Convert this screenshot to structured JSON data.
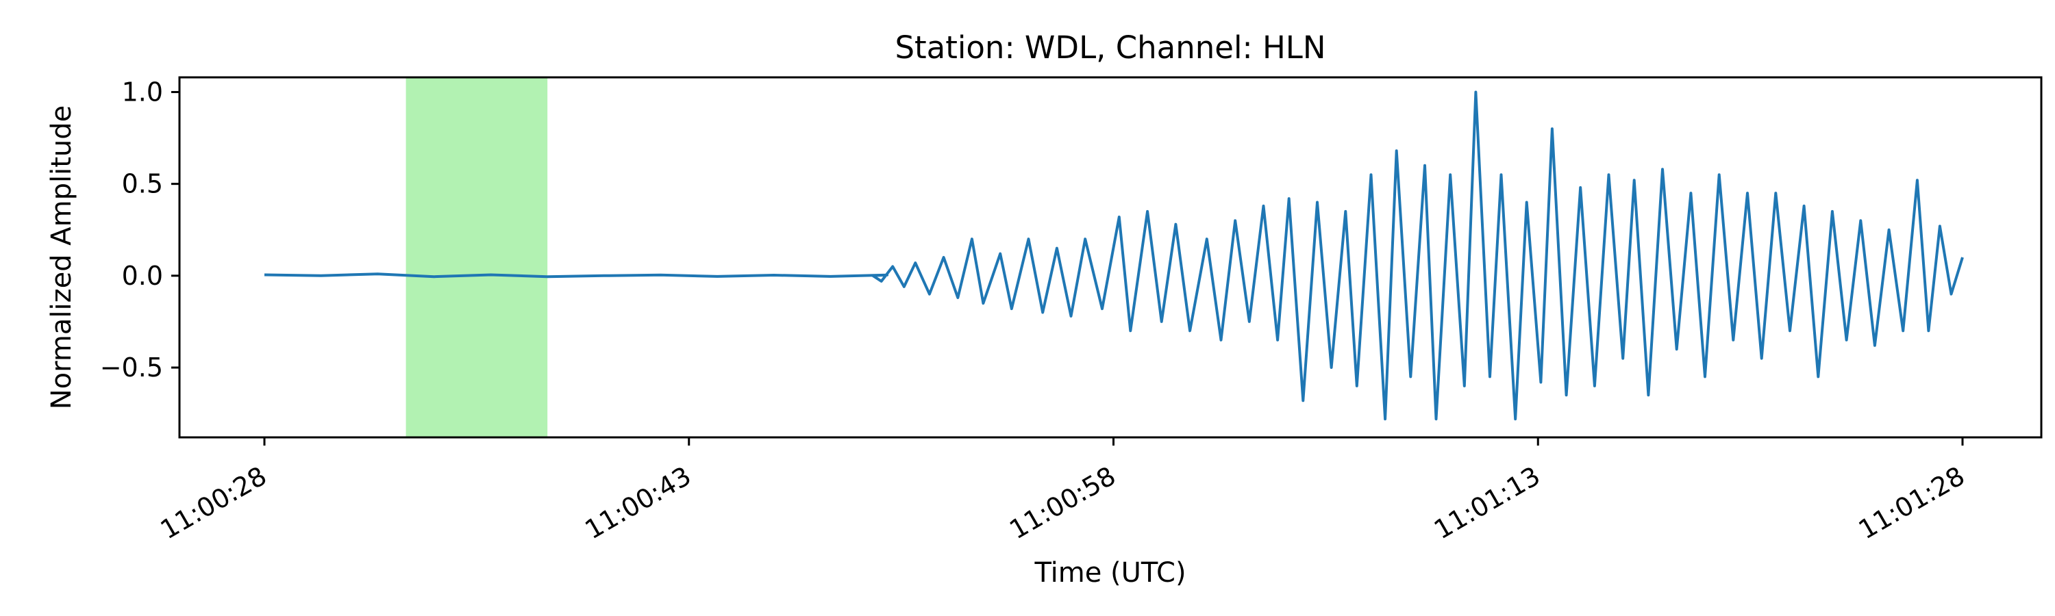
{
  "chart_data": {
    "type": "line",
    "title": "Station: WDL, Channel: HLN",
    "xlabel": "Time (UTC)",
    "ylabel": "Normalized Amplitude",
    "x_range": [
      "11:00:28",
      "11:01:28"
    ],
    "ylim": [
      -0.88,
      1.08
    ],
    "x_ticks": [
      "11:00:28",
      "11:00:43",
      "11:00:58",
      "11:01:13",
      "11:01:28"
    ],
    "y_ticks": [
      -0.5,
      0.0,
      0.5,
      1.0
    ],
    "y_tick_labels": [
      "−0.5",
      "0.0",
      "0.5",
      "1.0"
    ],
    "highlight": {
      "start": "11:00:33",
      "end": "11:00:38",
      "color": "#b2f2b2"
    },
    "grid": false,
    "series": [
      {
        "color": "#1f77b4",
        "points": [
          [
            "11:00:28",
            0.005
          ],
          [
            "11:00:30",
            0.0
          ],
          [
            "11:00:32",
            0.01
          ],
          [
            "11:00:34",
            -0.005
          ],
          [
            "11:00:36",
            0.005
          ],
          [
            "11:00:38",
            -0.005
          ],
          [
            "11:00:40",
            0.0
          ],
          [
            "11:00:42",
            0.004
          ],
          [
            "11:00:44",
            -0.004
          ],
          [
            "11:00:46",
            0.003
          ],
          [
            "11:00:48",
            -0.004
          ],
          [
            "11:00:50",
            0.004
          ],
          [
            "11:00:49.5",
            0.0
          ],
          [
            "11:00:49.8",
            -0.03
          ],
          [
            "11:00:50.2",
            0.05
          ],
          [
            "11:00:50.6",
            -0.06
          ],
          [
            "11:00:51.0",
            0.07
          ],
          [
            "11:00:51.5",
            -0.1
          ],
          [
            "11:00:52.0",
            0.1
          ],
          [
            "11:00:52.5",
            -0.12
          ],
          [
            "11:00:53.0",
            0.2
          ],
          [
            "11:00:53.4",
            -0.15
          ],
          [
            "11:00:54.0",
            0.12
          ],
          [
            "11:00:54.4",
            -0.18
          ],
          [
            "11:00:55.0",
            0.2
          ],
          [
            "11:00:55.5",
            -0.2
          ],
          [
            "11:00:56.0",
            0.15
          ],
          [
            "11:00:56.5",
            -0.22
          ],
          [
            "11:00:57.0",
            0.2
          ],
          [
            "11:00:57.6",
            -0.18
          ],
          [
            "11:00:58.2",
            0.32
          ],
          [
            "11:00:58.6",
            -0.3
          ],
          [
            "11:00:59.2",
            0.35
          ],
          [
            "11:00:59.7",
            -0.25
          ],
          [
            "11:01:00.2",
            0.28
          ],
          [
            "11:01:00.7",
            -0.3
          ],
          [
            "11:01:01.3",
            0.2
          ],
          [
            "11:01:01.8",
            -0.35
          ],
          [
            "11:01:02.3",
            0.3
          ],
          [
            "11:01:02.8",
            -0.25
          ],
          [
            "11:01:03.3",
            0.38
          ],
          [
            "11:01:03.8",
            -0.35
          ],
          [
            "11:01:04.2",
            0.42
          ],
          [
            "11:01:04.7",
            -0.68
          ],
          [
            "11:01:05.2",
            0.4
          ],
          [
            "11:01:05.7",
            -0.5
          ],
          [
            "11:01:06.2",
            0.35
          ],
          [
            "11:01:06.6",
            -0.6
          ],
          [
            "11:01:07.1",
            0.55
          ],
          [
            "11:01:07.6",
            -0.78
          ],
          [
            "11:01:08.0",
            0.68
          ],
          [
            "11:01:08.5",
            -0.55
          ],
          [
            "11:01:09.0",
            0.6
          ],
          [
            "11:01:09.4",
            -0.78
          ],
          [
            "11:01:09.9",
            0.55
          ],
          [
            "11:01:10.4",
            -0.6
          ],
          [
            "11:01:10.8",
            1.0
          ],
          [
            "11:01:11.3",
            -0.55
          ],
          [
            "11:01:11.7",
            0.55
          ],
          [
            "11:01:12.2",
            -0.78
          ],
          [
            "11:01:12.6",
            0.4
          ],
          [
            "11:01:13.1",
            -0.58
          ],
          [
            "11:01:13.5",
            0.8
          ],
          [
            "11:01:14.0",
            -0.65
          ],
          [
            "11:01:14.5",
            0.48
          ],
          [
            "11:01:15.0",
            -0.6
          ],
          [
            "11:01:15.5",
            0.55
          ],
          [
            "11:01:16.0",
            -0.45
          ],
          [
            "11:01:16.4",
            0.52
          ],
          [
            "11:01:16.9",
            -0.65
          ],
          [
            "11:01:17.4",
            0.58
          ],
          [
            "11:01:17.9",
            -0.4
          ],
          [
            "11:01:18.4",
            0.45
          ],
          [
            "11:01:18.9",
            -0.55
          ],
          [
            "11:01:19.4",
            0.55
          ],
          [
            "11:01:19.9",
            -0.35
          ],
          [
            "11:01:20.4",
            0.45
          ],
          [
            "11:01:20.9",
            -0.45
          ],
          [
            "11:01:21.4",
            0.45
          ],
          [
            "11:01:21.9",
            -0.3
          ],
          [
            "11:01:22.4",
            0.38
          ],
          [
            "11:01:22.9",
            -0.55
          ],
          [
            "11:01:23.4",
            0.35
          ],
          [
            "11:01:23.9",
            -0.35
          ],
          [
            "11:01:24.4",
            0.3
          ],
          [
            "11:01:24.9",
            -0.38
          ],
          [
            "11:01:25.4",
            0.25
          ],
          [
            "11:01:25.9",
            -0.3
          ],
          [
            "11:01:26.4",
            0.52
          ],
          [
            "11:01:26.8",
            -0.3
          ],
          [
            "11:01:27.2",
            0.27
          ],
          [
            "11:01:27.6",
            -0.1
          ],
          [
            "11:01:28.0",
            0.1
          ]
        ]
      }
    ]
  }
}
